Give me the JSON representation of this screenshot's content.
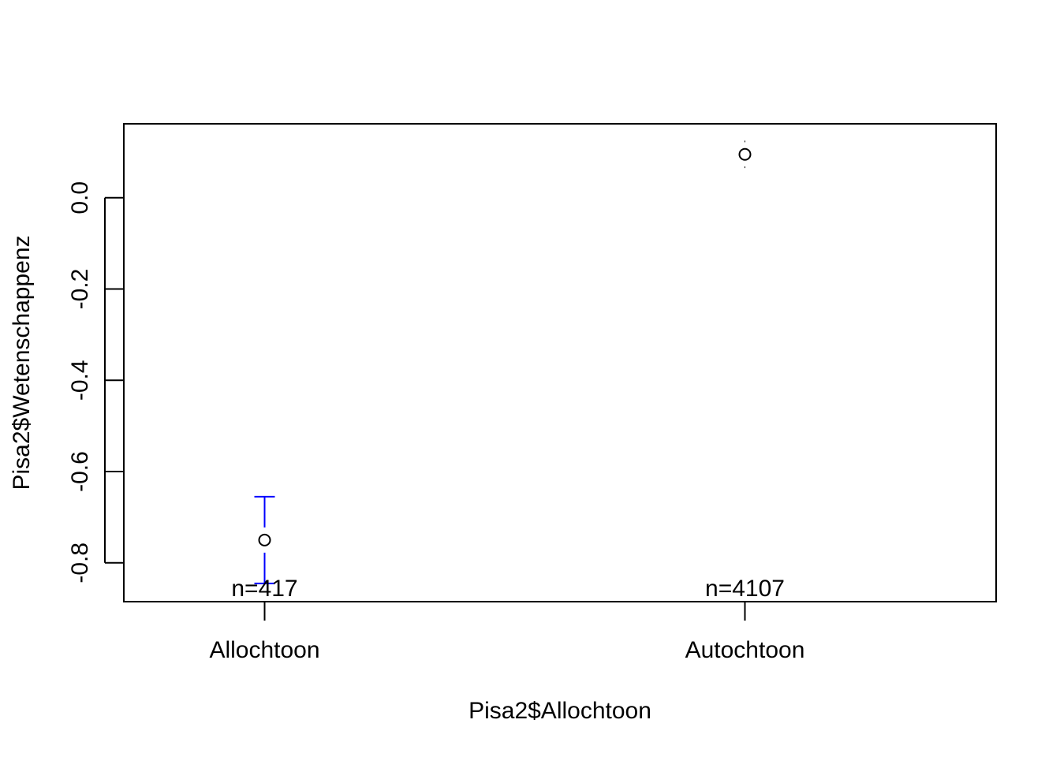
{
  "chart_data": {
    "type": "scatter",
    "subtype": "means with error bars",
    "title": "",
    "xlabel": "Pisa2$Allochtoon",
    "ylabel": "Pisa2$Wetenschappenz",
    "categories": [
      "Allochtoon",
      "Autochtoon"
    ],
    "means": [
      -0.75,
      0.095
    ],
    "upper": [
      -0.655,
      0.125
    ],
    "lower": [
      -0.845,
      0.065
    ],
    "n_labels": [
      "n=417",
      "n=4107"
    ],
    "ylim": [
      -0.885,
      0.162
    ],
    "yticks": [
      -0.8,
      -0.6,
      -0.4,
      -0.2,
      0.0
    ],
    "ytick_labels": [
      "-0.8",
      "-0.6",
      "-0.4",
      "-0.2",
      "0.0"
    ],
    "grid": false,
    "legend": "none",
    "colors": {
      "error_bar": "#0000ff",
      "point": "#000000",
      "frame": "#000000"
    }
  }
}
